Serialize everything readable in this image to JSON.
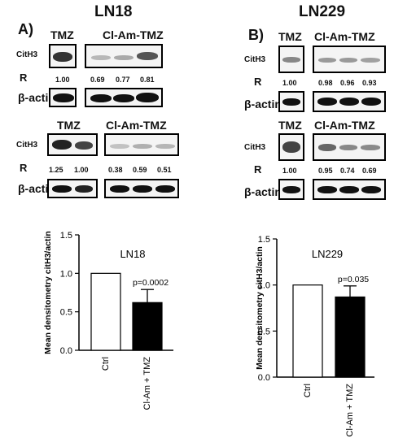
{
  "panel_left": {
    "letter": "A)",
    "title": "LN18",
    "blot_top": {
      "group1": "TMZ",
      "group2": "Cl-Am-TMZ",
      "target": "CitH3",
      "ratio_label": "R",
      "ratios": [
        "1.00",
        "0.69",
        "0.77",
        "0.81"
      ],
      "control": "β-actin"
    },
    "blot_bottom": {
      "group1": "TMZ",
      "group2": "Cl-Am-TMZ",
      "target": "CitH3",
      "ratio_label": "R",
      "ratios": [
        "1.25",
        "1.00",
        "0.38",
        "0.59",
        "0.51"
      ],
      "control": "β-actin"
    }
  },
  "panel_right": {
    "letter": "B)",
    "title": "LN229",
    "blot_top": {
      "group1": "TMZ",
      "group2": "Cl-Am-TMZ",
      "target": "CitH3",
      "ratio_label": "R",
      "ratios": [
        "1.00",
        "0.98",
        "0.96",
        "0.93"
      ],
      "control": "β-actin"
    },
    "blot_bottom": {
      "group1": "TMZ",
      "group2": "Cl-Am-TMZ",
      "target": "CitH3",
      "ratio_label": "R",
      "ratios": [
        "1.00",
        "0.95",
        "0.74",
        "0.69"
      ],
      "control": "β-actin"
    }
  },
  "colors": {
    "ctrl_bar": "#ffffff",
    "treat_bar": "#000000",
    "axis": "#000000"
  },
  "chart_data": [
    {
      "type": "bar",
      "title": "LN18",
      "categories": [
        "Ctrl",
        "Cl-Am + TMZ"
      ],
      "values": [
        1.0,
        0.62
      ],
      "error": [
        0,
        0.17
      ],
      "annotation": "p=0.0002",
      "ylabel": "Mean densitometry citH3/actin",
      "ylim": [
        0,
        1.5
      ],
      "yticks": [
        "0.0",
        "0.5",
        "1.0",
        "1.5"
      ],
      "bar_colors": [
        "#ffffff",
        "#000000"
      ],
      "grid": false
    },
    {
      "type": "bar",
      "title": "LN229",
      "categories": [
        "Ctrl",
        "Cl-Am + TMZ"
      ],
      "values": [
        1.0,
        0.87
      ],
      "error": [
        0,
        0.12
      ],
      "annotation": "p=0.035",
      "ylabel": "Mean densitometry citH3/actin",
      "ylim": [
        0,
        1.5
      ],
      "yticks": [
        "0.0",
        "0.5",
        "1.0",
        "1.5"
      ],
      "bar_colors": [
        "#ffffff",
        "#000000"
      ],
      "grid": false
    }
  ]
}
